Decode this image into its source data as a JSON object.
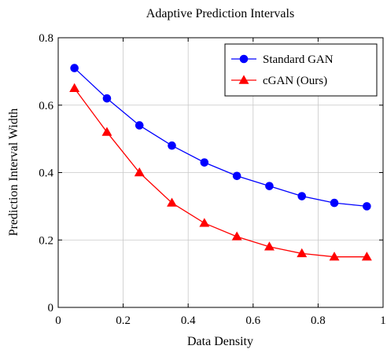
{
  "chart_data": {
    "type": "line",
    "title": "Adaptive Prediction Intervals",
    "xlabel": "Data Density",
    "ylabel": "Prediction Interval Width",
    "xlim": [
      0,
      1
    ],
    "ylim": [
      0,
      0.8
    ],
    "xticks": [
      0,
      0.2,
      0.4,
      0.6,
      0.8,
      1
    ],
    "yticks": [
      0,
      0.2,
      0.4,
      0.6,
      0.8
    ],
    "xtick_labels": [
      "0",
      "0.2",
      "0.4",
      "0.6",
      "0.8",
      "1"
    ],
    "ytick_labels": [
      "0",
      "0.2",
      "0.4",
      "0.6",
      "0.8"
    ],
    "grid": true,
    "legend_position": "top-right",
    "x": [
      0.05,
      0.15,
      0.25,
      0.35,
      0.45,
      0.55,
      0.65,
      0.75,
      0.85,
      0.95
    ],
    "series": [
      {
        "name": "Standard GAN",
        "color": "#0000ff",
        "marker": "circle",
        "values": [
          0.71,
          0.62,
          0.54,
          0.48,
          0.43,
          0.39,
          0.36,
          0.33,
          0.31,
          0.3
        ]
      },
      {
        "name": "cGAN (Ours)",
        "color": "#ff0000",
        "marker": "triangle",
        "values": [
          0.65,
          0.52,
          0.4,
          0.31,
          0.25,
          0.21,
          0.18,
          0.16,
          0.15,
          0.15
        ]
      }
    ]
  }
}
